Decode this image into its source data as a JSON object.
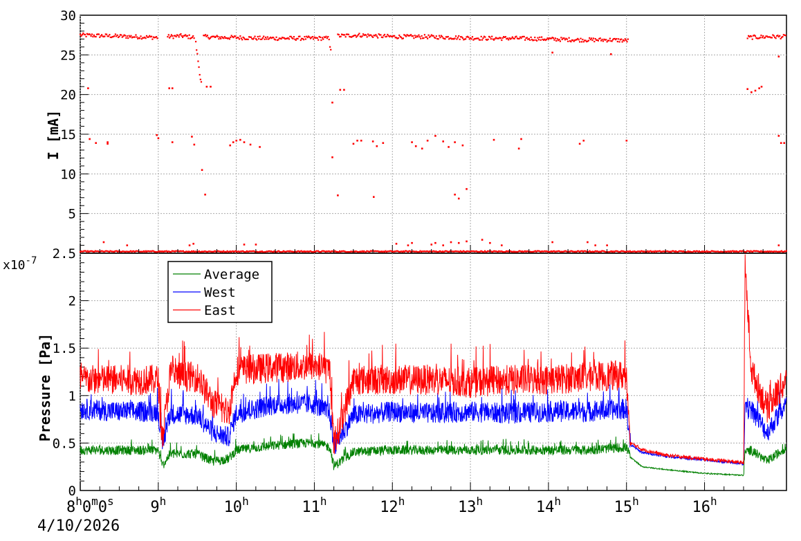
{
  "chart_data": [
    {
      "type": "scatter",
      "ylabel": "I [mA]",
      "ylim": [
        0,
        30
      ],
      "yticks": [
        "0",
        "5",
        "10",
        "15",
        "20",
        "25",
        "30"
      ],
      "grid": true,
      "color": "#ff0000",
      "x_unit": "hours",
      "series": [
        {
          "segments": [
            {
              "x": [
                8.0,
                8.35,
                8.7,
                9.0
              ],
              "y": [
                27.5,
                27.4,
                27.3,
                27.2
              ]
            },
            {
              "x": [
                9.12,
                9.3,
                9.47
              ],
              "y": [
                27.3,
                27.4,
                27.2
              ]
            },
            {
              "x": [
                9.48,
                9.5,
                9.52,
                9.54,
                9.56
              ],
              "y": [
                26.5,
                25.0,
                23.5,
                22.0,
                21.0
              ]
            },
            {
              "x": [
                9.58,
                9.8,
                10.0,
                10.3,
                10.6,
                10.9,
                11.2
              ],
              "y": [
                27.3,
                27.2,
                27.2,
                27.1,
                27.1,
                27.1,
                27.1
              ]
            },
            {
              "x": [
                11.2,
                11.22
              ],
              "y": [
                26.2,
                25.4
              ]
            },
            {
              "x": [
                11.3,
                11.6,
                12.0,
                12.4,
                12.8,
                13.2,
                13.6,
                14.0,
                14.4,
                14.8,
                15.03
              ],
              "y": [
                27.4,
                27.5,
                27.3,
                27.3,
                27.2,
                27.1,
                27.1,
                27.0,
                26.9,
                26.9,
                26.8
              ]
            },
            {
              "x": [
                16.55,
                16.8,
                17.05
              ],
              "y": [
                27.2,
                27.3,
                27.3
              ]
            }
          ],
          "outliers": [
            [
              8.1,
              20.8
            ],
            [
              8.12,
              14.4
            ],
            [
              8.2,
              13.9
            ],
            [
              8.35,
              14.0
            ],
            [
              8.35,
              13.8
            ],
            [
              8.98,
              14.9
            ],
            [
              9.0,
              14.5
            ],
            [
              9.14,
              20.8
            ],
            [
              9.18,
              20.8
            ],
            [
              9.18,
              14.0
            ],
            [
              9.43,
              14.7
            ],
            [
              9.46,
              13.7
            ],
            [
              9.56,
              10.5
            ],
            [
              9.6,
              7.4
            ],
            [
              9.62,
              21.0
            ],
            [
              9.67,
              21.0
            ],
            [
              9.92,
              13.6
            ],
            [
              9.96,
              14.0
            ],
            [
              10.0,
              14.2
            ],
            [
              10.05,
              14.3
            ],
            [
              10.1,
              14.0
            ],
            [
              10.18,
              13.7
            ],
            [
              10.3,
              13.4
            ],
            [
              11.23,
              19.0
            ],
            [
              11.23,
              12.1
            ],
            [
              11.3,
              7.3
            ],
            [
              11.33,
              20.6
            ],
            [
              11.38,
              20.6
            ],
            [
              11.5,
              13.8
            ],
            [
              11.55,
              14.2
            ],
            [
              11.6,
              14.2
            ],
            [
              11.75,
              14.1
            ],
            [
              11.8,
              13.5
            ],
            [
              11.88,
              13.9
            ],
            [
              11.76,
              7.1
            ],
            [
              12.25,
              14.0
            ],
            [
              12.3,
              13.5
            ],
            [
              12.38,
              13.2
            ],
            [
              12.45,
              14.2
            ],
            [
              12.55,
              14.8
            ],
            [
              12.65,
              14.1
            ],
            [
              12.72,
              13.4
            ],
            [
              12.8,
              14.0
            ],
            [
              12.9,
              13.6
            ],
            [
              12.8,
              7.4
            ],
            [
              12.85,
              6.9
            ],
            [
              12.95,
              8.1
            ],
            [
              13.3,
              14.3
            ],
            [
              13.65,
              14.4
            ],
            [
              13.62,
              13.2
            ],
            [
              14.05,
              25.3
            ],
            [
              14.4,
              13.8
            ],
            [
              14.45,
              14.2
            ],
            [
              14.8,
              25.1
            ],
            [
              15.0,
              14.2
            ],
            [
              16.55,
              20.7
            ],
            [
              16.6,
              20.3
            ],
            [
              16.65,
              20.5
            ],
            [
              16.7,
              20.8
            ],
            [
              16.73,
              21.0
            ],
            [
              16.95,
              24.8
            ],
            [
              16.95,
              14.8
            ],
            [
              16.98,
              13.9
            ],
            [
              17.02,
              13.9
            ]
          ],
          "low_points": [
            [
              8.3,
              1.4
            ],
            [
              8.6,
              1.0
            ],
            [
              9.4,
              1.0
            ],
            [
              9.45,
              1.2
            ],
            [
              10.1,
              1.1
            ],
            [
              10.25,
              1.1
            ],
            [
              12.05,
              1.2
            ],
            [
              12.2,
              1.0
            ],
            [
              12.25,
              1.3
            ],
            [
              12.5,
              1.1
            ],
            [
              12.55,
              1.3
            ],
            [
              12.65,
              1.0
            ],
            [
              12.75,
              1.4
            ],
            [
              12.85,
              1.3
            ],
            [
              12.95,
              1.5
            ],
            [
              13.15,
              1.7
            ],
            [
              13.25,
              1.3
            ],
            [
              13.4,
              1.0
            ],
            [
              14.05,
              1.4
            ],
            [
              14.5,
              1.4
            ],
            [
              14.6,
              1.0
            ],
            [
              14.75,
              1.0
            ],
            [
              16.95,
              1.0
            ]
          ]
        }
      ]
    },
    {
      "type": "line",
      "ylabel": "Pressure [Pa]",
      "yexponent": "x10",
      "yexponent_power": "-7",
      "ylim": [
        0,
        2.5
      ],
      "yticks": [
        "0",
        "0.5",
        "1",
        "1.5",
        "2",
        "2.5"
      ],
      "grid": true,
      "legend_position": "top-left",
      "x": [
        8.0,
        8.5,
        9.0,
        9.05,
        9.15,
        9.5,
        9.7,
        9.9,
        10.0,
        10.5,
        11.0,
        11.2,
        11.25,
        11.5,
        12.0,
        12.5,
        13.0,
        13.5,
        14.0,
        14.5,
        15.0,
        15.05,
        15.2,
        15.5,
        16.0,
        16.5,
        16.52,
        16.6,
        16.8,
        17.05
      ],
      "series": [
        {
          "name": "Average",
          "color": "#008000",
          "noise": 0.05,
          "values": [
            0.42,
            0.42,
            0.42,
            0.25,
            0.38,
            0.38,
            0.3,
            0.33,
            0.42,
            0.47,
            0.5,
            0.45,
            0.25,
            0.4,
            0.42,
            0.42,
            0.42,
            0.42,
            0.42,
            0.42,
            0.45,
            0.35,
            0.25,
            0.22,
            0.18,
            0.16,
            0.4,
            0.42,
            0.3,
            0.45
          ]
        },
        {
          "name": "West",
          "color": "#0000ff",
          "noise": 0.11,
          "values": [
            0.85,
            0.82,
            0.82,
            0.45,
            0.8,
            0.78,
            0.6,
            0.55,
            0.8,
            0.9,
            0.9,
            0.8,
            0.45,
            0.78,
            0.82,
            0.8,
            0.82,
            0.8,
            0.82,
            0.82,
            0.85,
            0.48,
            0.4,
            0.36,
            0.32,
            0.28,
            0.82,
            0.85,
            0.6,
            0.9
          ]
        },
        {
          "name": "East",
          "color": "#ff0000",
          "noise": 0.16,
          "values": [
            1.15,
            1.15,
            1.15,
            0.5,
            1.2,
            1.18,
            0.9,
            0.8,
            1.25,
            1.28,
            1.3,
            1.25,
            0.45,
            1.15,
            1.15,
            1.15,
            1.12,
            1.15,
            1.15,
            1.18,
            1.2,
            0.5,
            0.43,
            0.37,
            0.33,
            0.29,
            2.34,
            1.25,
            0.85,
            1.15
          ]
        }
      ]
    }
  ],
  "x_axis": {
    "unit": "hours",
    "range": [
      8.0,
      17.05
    ],
    "tick_labels": [
      {
        "value": 8,
        "main": "8",
        "sup": "h",
        "extra": "0",
        "extra_sup": "m",
        "extra2": "0",
        "extra2_sup": "s"
      },
      {
        "value": 9,
        "main": "9",
        "sup": "h"
      },
      {
        "value": 10,
        "main": "10",
        "sup": "h"
      },
      {
        "value": 11,
        "main": "11",
        "sup": "h"
      },
      {
        "value": 12,
        "main": "12",
        "sup": "h"
      },
      {
        "value": 13,
        "main": "13",
        "sup": "h"
      },
      {
        "value": 14,
        "main": "14",
        "sup": "h"
      },
      {
        "value": 15,
        "main": "15",
        "sup": "h"
      },
      {
        "value": 16,
        "main": "16",
        "sup": "h"
      }
    ],
    "date": "4/10/2026"
  }
}
